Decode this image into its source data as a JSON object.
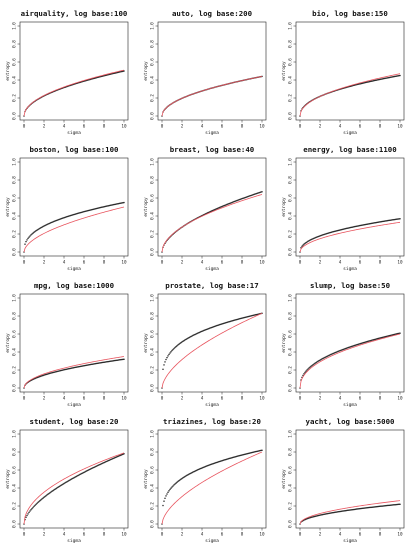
{
  "chart_data": [
    {
      "type": "scatter",
      "title": "airquality, log base:100",
      "xlabel": "sigma",
      "ylabel": "entropy",
      "xlim": [
        0,
        10
      ],
      "ylim": [
        0,
        1
      ],
      "xticks": [
        0,
        2,
        4,
        6,
        8,
        10
      ],
      "yticks": [
        0,
        0.2,
        0.4,
        0.6,
        0.8,
        1.0
      ],
      "xtick_labels": [
        "0",
        "2",
        "4",
        "6",
        "8",
        "10"
      ],
      "ytick_labels": [
        "0.0",
        "0.2",
        "0.4",
        "0.6",
        "0.8",
        "1.0"
      ],
      "series": [
        {
          "kind": "points",
          "color": "#2a2a2a",
          "amplitude": 0.5,
          "exponent": 0.5
        },
        {
          "kind": "line",
          "color": "#e8555f",
          "amplitude": 0.51,
          "exponent": 0.5
        }
      ]
    },
    {
      "type": "scatter",
      "title": "auto, log base:200",
      "xlabel": "sigma",
      "ylabel": "entropy",
      "xlim": [
        0,
        10
      ],
      "ylim": [
        0,
        1
      ],
      "xticks": [
        0,
        2,
        4,
        6,
        8,
        10
      ],
      "yticks": [
        0,
        0.2,
        0.4,
        0.6,
        0.8,
        1.0
      ],
      "xtick_labels": [
        "0",
        "2",
        "4",
        "6",
        "8",
        "10"
      ],
      "ytick_labels": [
        "0.0",
        "0.2",
        "0.4",
        "0.6",
        "0.8",
        "1.0"
      ],
      "series": [
        {
          "kind": "points",
          "color": "#2a2a2a",
          "amplitude": 0.44,
          "exponent": 0.5
        },
        {
          "kind": "line",
          "color": "#e8555f",
          "amplitude": 0.44,
          "exponent": 0.5
        }
      ]
    },
    {
      "type": "scatter",
      "title": "bio, log base:150",
      "xlabel": "sigma",
      "ylabel": "entropy",
      "xlim": [
        0,
        10
      ],
      "ylim": [
        0,
        1
      ],
      "xticks": [
        0,
        2,
        4,
        6,
        8,
        10
      ],
      "yticks": [
        0,
        0.2,
        0.4,
        0.6,
        0.8,
        1.0
      ],
      "xtick_labels": [
        "0",
        "2",
        "4",
        "6",
        "8",
        "10"
      ],
      "ytick_labels": [
        "0.0",
        "0.2",
        "0.4",
        "0.6",
        "0.8",
        "1.0"
      ],
      "series": [
        {
          "kind": "points",
          "color": "#2a2a2a",
          "amplitude": 0.45,
          "exponent": 0.45
        },
        {
          "kind": "line",
          "color": "#e8555f",
          "amplitude": 0.47,
          "exponent": 0.48
        }
      ]
    },
    {
      "type": "scatter",
      "title": "boston, log base:100",
      "xlabel": "sigma",
      "ylabel": "entropy",
      "xlim": [
        0,
        10
      ],
      "ylim": [
        0,
        1
      ],
      "xticks": [
        0,
        2,
        4,
        6,
        8,
        10
      ],
      "yticks": [
        0,
        0.2,
        0.4,
        0.6,
        0.8,
        1.0
      ],
      "xtick_labels": [
        "0",
        "2",
        "4",
        "6",
        "8",
        "10"
      ],
      "ytick_labels": [
        "0.0",
        "0.2",
        "0.4",
        "0.6",
        "0.8",
        "1.0"
      ],
      "series": [
        {
          "kind": "points",
          "color": "#2a2a2a",
          "amplitude": 0.55,
          "exponent": 0.4
        },
        {
          "kind": "line",
          "color": "#e8555f",
          "amplitude": 0.5,
          "exponent": 0.55
        }
      ]
    },
    {
      "type": "scatter",
      "title": "breast, log base:40",
      "xlabel": "sigma",
      "ylabel": "entropy",
      "xlim": [
        0,
        10
      ],
      "ylim": [
        0,
        1
      ],
      "xticks": [
        0,
        2,
        4,
        6,
        8,
        10
      ],
      "yticks": [
        0,
        0.2,
        0.4,
        0.6,
        0.8,
        1.0
      ],
      "xtick_labels": [
        "0",
        "2",
        "4",
        "6",
        "8",
        "10"
      ],
      "ytick_labels": [
        "0.0",
        "0.2",
        "0.4",
        "0.6",
        "0.8",
        "1.0"
      ],
      "series": [
        {
          "kind": "points",
          "color": "#2a2a2a",
          "amplitude": 0.67,
          "exponent": 0.55
        },
        {
          "kind": "line",
          "color": "#e8555f",
          "amplitude": 0.64,
          "exponent": 0.52
        }
      ]
    },
    {
      "type": "scatter",
      "title": "energy, log base:1100",
      "xlabel": "sigma",
      "ylabel": "entropy",
      "xlim": [
        0,
        10
      ],
      "ylim": [
        0,
        1
      ],
      "xticks": [
        0,
        2,
        4,
        6,
        8,
        10
      ],
      "yticks": [
        0,
        0.2,
        0.4,
        0.6,
        0.8,
        1.0
      ],
      "xtick_labels": [
        "0",
        "2",
        "4",
        "6",
        "8",
        "10"
      ],
      "ytick_labels": [
        "0.0",
        "0.2",
        "0.4",
        "0.6",
        "0.8",
        "1.0"
      ],
      "series": [
        {
          "kind": "points",
          "color": "#2a2a2a",
          "amplitude": 0.37,
          "exponent": 0.45
        },
        {
          "kind": "line",
          "color": "#e8555f",
          "amplitude": 0.33,
          "exponent": 0.5
        }
      ]
    },
    {
      "type": "scatter",
      "title": "mpg, log base:1000",
      "xlabel": "sigma",
      "ylabel": "entropy",
      "xlim": [
        0,
        10
      ],
      "ylim": [
        0,
        1
      ],
      "xticks": [
        0,
        2,
        4,
        6,
        8,
        10
      ],
      "yticks": [
        0,
        0.2,
        0.4,
        0.6,
        0.8,
        1.0
      ],
      "xtick_labels": [
        "0",
        "2",
        "4",
        "6",
        "8",
        "10"
      ],
      "ytick_labels": [
        "0.0",
        "0.2",
        "0.4",
        "0.6",
        "0.8",
        "1.0"
      ],
      "series": [
        {
          "kind": "points",
          "color": "#2a2a2a",
          "amplitude": 0.32,
          "exponent": 0.5
        },
        {
          "kind": "line",
          "color": "#e8555f",
          "amplitude": 0.35,
          "exponent": 0.5
        }
      ]
    },
    {
      "type": "scatter",
      "title": "prostate, log base:17",
      "xlabel": "sigma",
      "ylabel": "entropy",
      "xlim": [
        0,
        10
      ],
      "ylim": [
        0,
        1
      ],
      "xticks": [
        0,
        2,
        4,
        6,
        8,
        10
      ],
      "yticks": [
        0,
        0.2,
        0.4,
        0.6,
        0.8,
        1.0
      ],
      "xtick_labels": [
        "0",
        "2",
        "4",
        "6",
        "8",
        "10"
      ],
      "ytick_labels": [
        "0.0",
        "0.2",
        "0.4",
        "0.6",
        "0.8",
        "1.0"
      ],
      "series": [
        {
          "kind": "points",
          "color": "#2a2a2a",
          "amplitude": 0.83,
          "exponent": 0.3
        },
        {
          "kind": "line",
          "color": "#e8555f",
          "amplitude": 0.83,
          "exponent": 0.6
        }
      ]
    },
    {
      "type": "scatter",
      "title": "slump, log base:50",
      "xlabel": "sigma",
      "ylabel": "entropy",
      "xlim": [
        0,
        10
      ],
      "ylim": [
        0,
        1
      ],
      "xticks": [
        0,
        2,
        4,
        6,
        8,
        10
      ],
      "yticks": [
        0,
        0.2,
        0.4,
        0.6,
        0.8,
        1.0
      ],
      "xtick_labels": [
        "0",
        "2",
        "4",
        "6",
        "8",
        "10"
      ],
      "ytick_labels": [
        "0.0",
        "0.2",
        "0.4",
        "0.6",
        "0.8",
        "1.0"
      ],
      "series": [
        {
          "kind": "points",
          "color": "#2a2a2a",
          "amplitude": 0.61,
          "exponent": 0.42
        },
        {
          "kind": "line",
          "color": "#e8555f",
          "amplitude": 0.6,
          "exponent": 0.45
        }
      ]
    },
    {
      "type": "scatter",
      "title": "student, log base:20",
      "xlabel": "sigma",
      "ylabel": "entropy",
      "xlim": [
        0,
        10
      ],
      "ylim": [
        0,
        1
      ],
      "xticks": [
        0,
        2,
        4,
        6,
        8,
        10
      ],
      "yticks": [
        0,
        0.2,
        0.4,
        0.6,
        0.8,
        1.0
      ],
      "xtick_labels": [
        "0",
        "2",
        "4",
        "6",
        "8",
        "10"
      ],
      "ytick_labels": [
        "0.0",
        "0.2",
        "0.4",
        "0.6",
        "0.8",
        "1.0"
      ],
      "series": [
        {
          "kind": "points",
          "color": "#2a2a2a",
          "amplitude": 0.78,
          "exponent": 0.6
        },
        {
          "kind": "line",
          "color": "#e8555f",
          "amplitude": 0.79,
          "exponent": 0.5
        }
      ]
    },
    {
      "type": "scatter",
      "title": "triazines, log base:20",
      "xlabel": "sigma",
      "ylabel": "entropy",
      "xlim": [
        0,
        10
      ],
      "ylim": [
        0,
        1
      ],
      "xticks": [
        0,
        2,
        4,
        6,
        8,
        10
      ],
      "yticks": [
        0,
        0.2,
        0.4,
        0.6,
        0.8,
        1.0
      ],
      "xtick_labels": [
        "0",
        "2",
        "4",
        "6",
        "8",
        "10"
      ],
      "ytick_labels": [
        "0.0",
        "0.2",
        "0.4",
        "0.6",
        "0.8",
        "1.0"
      ],
      "series": [
        {
          "kind": "points",
          "color": "#2a2a2a",
          "amplitude": 0.82,
          "exponent": 0.3
        },
        {
          "kind": "line",
          "color": "#e8555f",
          "amplitude": 0.8,
          "exponent": 0.6
        }
      ]
    },
    {
      "type": "scatter",
      "title": "yacht, log base:5000",
      "xlabel": "sigma",
      "ylabel": "entropy",
      "xlim": [
        0,
        10
      ],
      "ylim": [
        0,
        1
      ],
      "xticks": [
        0,
        2,
        4,
        6,
        8,
        10
      ],
      "yticks": [
        0,
        0.2,
        0.4,
        0.6,
        0.8,
        1.0
      ],
      "xtick_labels": [
        "0",
        "2",
        "4",
        "6",
        "8",
        "10"
      ],
      "ytick_labels": [
        "0.0",
        "0.2",
        "0.4",
        "0.6",
        "0.8",
        "1.0"
      ],
      "series": [
        {
          "kind": "points",
          "color": "#2a2a2a",
          "amplitude": 0.22,
          "exponent": 0.5
        },
        {
          "kind": "line",
          "color": "#e8555f",
          "amplitude": 0.26,
          "exponent": 0.5
        }
      ]
    }
  ]
}
